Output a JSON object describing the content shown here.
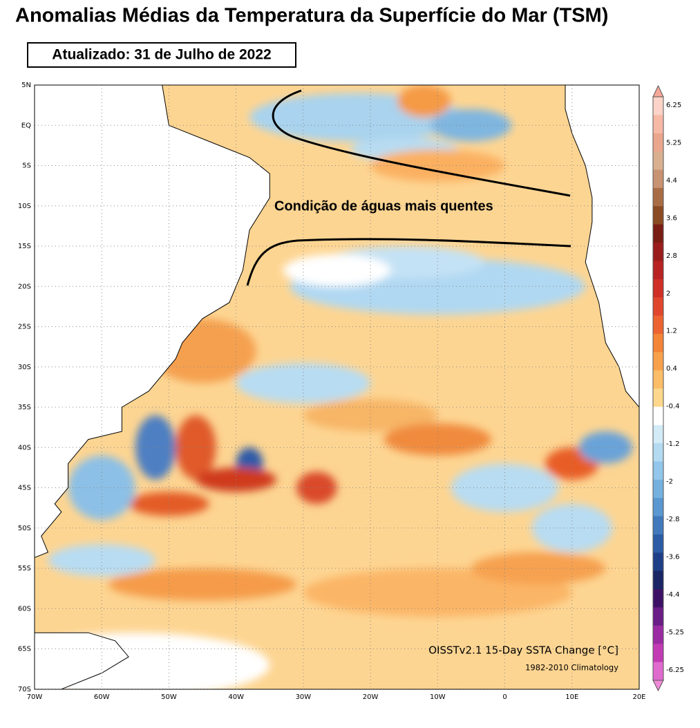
{
  "title": "Anomalias Médias da Temperatura da Superfície do Mar (TSM)",
  "updated": "Atualizado: 31 de Julho de 2022",
  "annotation": "Condição de águas mais quentes",
  "lat_labels": [
    "5N",
    "EQ",
    "5S",
    "10S",
    "15S",
    "20S",
    "25S",
    "30S",
    "35S",
    "40S",
    "45S",
    "50S",
    "55S",
    "60S",
    "65S",
    "70S"
  ],
  "lon_labels": [
    "70W",
    "60W",
    "50W",
    "40W",
    "30W",
    "20W",
    "10W",
    "0",
    "10E",
    "20E"
  ],
  "colorbar": {
    "labels": [
      6.25,
      5.25,
      4.4,
      3.6,
      2.8,
      2,
      1.2,
      0.4,
      -0.4,
      -1.2,
      -2,
      -2.8,
      -3.6,
      -4.4,
      -5.25,
      -6.25
    ]
  },
  "product": "OISSTv2.1 15-Day SSTA Change [°C]",
  "climatology": "1982-2010 Climatology"
}
